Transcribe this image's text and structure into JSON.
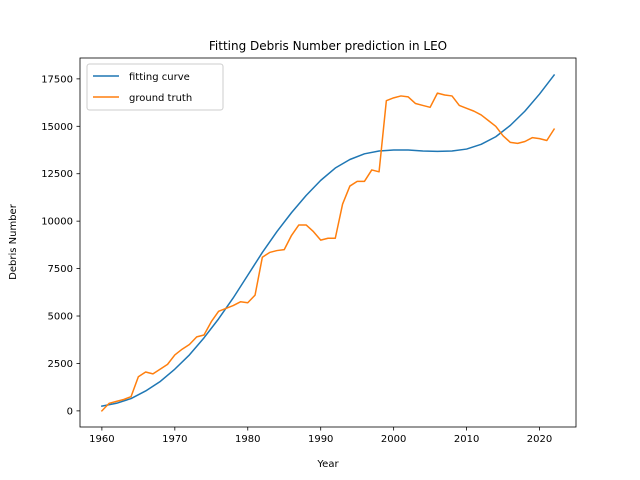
{
  "chart_data": {
    "type": "line",
    "title": "Fitting Debris Number prediction in LEO",
    "xlabel": "Year",
    "ylabel": "Debris Number",
    "xlim": [
      1957,
      2025
    ],
    "ylim": [
      -850,
      18600
    ],
    "x_ticks": [
      1960,
      1970,
      1980,
      1990,
      2000,
      2010,
      2020
    ],
    "x_tick_labels": [
      "1960",
      "1970",
      "1980",
      "1990",
      "2000",
      "2010",
      "2020"
    ],
    "y_ticks": [
      0,
      2500,
      5000,
      7500,
      10000,
      12500,
      15000,
      17500
    ],
    "y_tick_labels": [
      "0",
      "2500",
      "5000",
      "7500",
      "10000",
      "12500",
      "15000",
      "17500"
    ],
    "grid": false,
    "legend_position": "upper-left",
    "series": [
      {
        "name": "fitting curve",
        "color": "#1f77b4",
        "x": [
          1960,
          1962,
          1964,
          1966,
          1968,
          1970,
          1972,
          1974,
          1976,
          1978,
          1980,
          1982,
          1984,
          1986,
          1988,
          1990,
          1992,
          1994,
          1996,
          1998,
          2000,
          2002,
          2004,
          2006,
          2008,
          2010,
          2012,
          2014,
          2016,
          2018,
          2020,
          2022
        ],
        "y": [
          250,
          400,
          650,
          1050,
          1550,
          2200,
          2950,
          3850,
          4850,
          5950,
          7150,
          8350,
          9450,
          10450,
          11350,
          12150,
          12800,
          13250,
          13550,
          13700,
          13750,
          13750,
          13700,
          13680,
          13700,
          13800,
          14050,
          14450,
          15050,
          15800,
          16700,
          17700
        ]
      },
      {
        "name": "ground truth",
        "color": "#ff7f0e",
        "x": [
          1960,
          1961,
          1962,
          1963,
          1964,
          1965,
          1966,
          1967,
          1968,
          1969,
          1970,
          1971,
          1972,
          1973,
          1974,
          1975,
          1976,
          1977,
          1978,
          1979,
          1980,
          1981,
          1982,
          1983,
          1984,
          1985,
          1986,
          1987,
          1988,
          1989,
          1990,
          1991,
          1992,
          1993,
          1994,
          1995,
          1996,
          1997,
          1998,
          1999,
          2000,
          2001,
          2002,
          2003,
          2004,
          2005,
          2006,
          2007,
          2008,
          2009,
          2010,
          2011,
          2012,
          2013,
          2014,
          2015,
          2016,
          2017,
          2018,
          2019,
          2020,
          2021,
          2022
        ],
        "y": [
          0,
          400,
          500,
          600,
          750,
          1800,
          2050,
          1950,
          2200,
          2450,
          2950,
          3250,
          3500,
          3900,
          4000,
          4700,
          5250,
          5400,
          5550,
          5750,
          5700,
          6100,
          8100,
          8350,
          8450,
          8500,
          9250,
          9800,
          9800,
          9450,
          9000,
          9100,
          9100,
          10900,
          11850,
          12100,
          12100,
          12700,
          12600,
          16350,
          16500,
          16600,
          16550,
          16200,
          16100,
          16000,
          16750,
          16650,
          16600,
          16100,
          15950,
          15800,
          15600,
          15300,
          15000,
          14500,
          14150,
          14100,
          14200,
          14400,
          14350,
          14250,
          14850
        ]
      }
    ]
  }
}
